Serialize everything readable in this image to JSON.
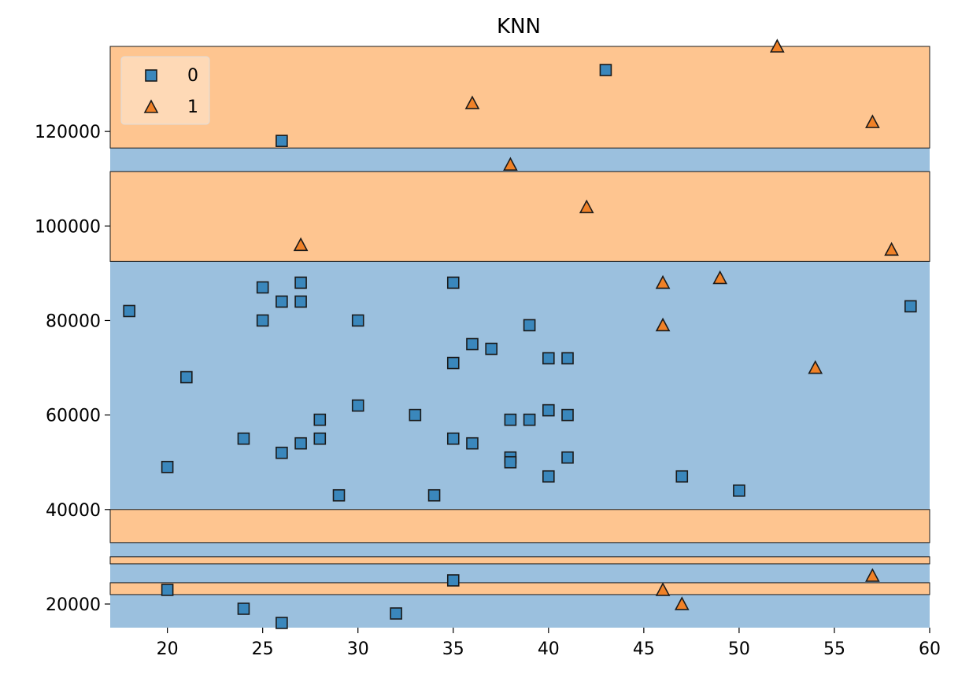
{
  "chart_data": {
    "type": "scatter",
    "title": "KNN",
    "xlabel": "",
    "ylabel": "",
    "xlim": [
      17,
      60
    ],
    "ylim": [
      15000,
      138000
    ],
    "xticks": [
      20,
      25,
      30,
      35,
      40,
      45,
      50,
      55,
      60
    ],
    "yticks": [
      20000,
      40000,
      60000,
      80000,
      100000,
      120000
    ],
    "grid": false,
    "legend_position": "top-left",
    "colors": {
      "class0_region": "#9bc0de",
      "class1_region": "#fec590",
      "class0_marker": "#3a87bc",
      "class1_marker": "#f08127",
      "edge": "#1a1a1a"
    },
    "decision_regions": {
      "description_class": "1",
      "bands": [
        {
          "class": "1",
          "y_min": 116500,
          "y_max": 138000
        },
        {
          "class": "1",
          "y_min": 92500,
          "y_max": 111500
        },
        {
          "class": "1",
          "y_min": 33000,
          "y_max": 40000
        },
        {
          "class": "1",
          "y_min": 28500,
          "y_max": 30000
        },
        {
          "class": "1",
          "y_min": 22000,
          "y_max": 24500
        }
      ]
    },
    "series": [
      {
        "name": "0",
        "marker": "square",
        "points": [
          [
            43,
            133000
          ],
          [
            26,
            118000
          ],
          [
            18,
            82000
          ],
          [
            25,
            87000
          ],
          [
            26,
            84000
          ],
          [
            27,
            88000
          ],
          [
            27,
            84000
          ],
          [
            25,
            80000
          ],
          [
            30,
            80000
          ],
          [
            35,
            88000
          ],
          [
            21,
            68000
          ],
          [
            36,
            75000
          ],
          [
            37,
            74000
          ],
          [
            35,
            71000
          ],
          [
            39,
            79000
          ],
          [
            40,
            72000
          ],
          [
            41,
            72000
          ],
          [
            59,
            83000
          ],
          [
            30,
            62000
          ],
          [
            33,
            60000
          ],
          [
            28,
            59000
          ],
          [
            24,
            55000
          ],
          [
            26,
            52000
          ],
          [
            27,
            54000
          ],
          [
            28,
            55000
          ],
          [
            35,
            55000
          ],
          [
            36,
            54000
          ],
          [
            38,
            59000
          ],
          [
            39,
            59000
          ],
          [
            40,
            61000
          ],
          [
            41,
            60000
          ],
          [
            38,
            51000
          ],
          [
            38,
            50000
          ],
          [
            41,
            51000
          ],
          [
            40,
            47000
          ],
          [
            47,
            47000
          ],
          [
            50,
            44000
          ],
          [
            20,
            49000
          ],
          [
            29,
            43000
          ],
          [
            34,
            43000
          ],
          [
            20,
            23000
          ],
          [
            24,
            19000
          ],
          [
            26,
            16000
          ],
          [
            32,
            18000
          ],
          [
            35,
            25000
          ]
        ]
      },
      {
        "name": "1",
        "marker": "triangle",
        "points": [
          [
            52,
            138000
          ],
          [
            36,
            126000
          ],
          [
            57,
            122000
          ],
          [
            38,
            113000
          ],
          [
            42,
            104000
          ],
          [
            27,
            96000
          ],
          [
            58,
            95000
          ],
          [
            46,
            88000
          ],
          [
            49,
            89000
          ],
          [
            46,
            79000
          ],
          [
            54,
            70000
          ],
          [
            46,
            23000
          ],
          [
            47,
            20000
          ],
          [
            57,
            26000
          ]
        ]
      }
    ]
  }
}
